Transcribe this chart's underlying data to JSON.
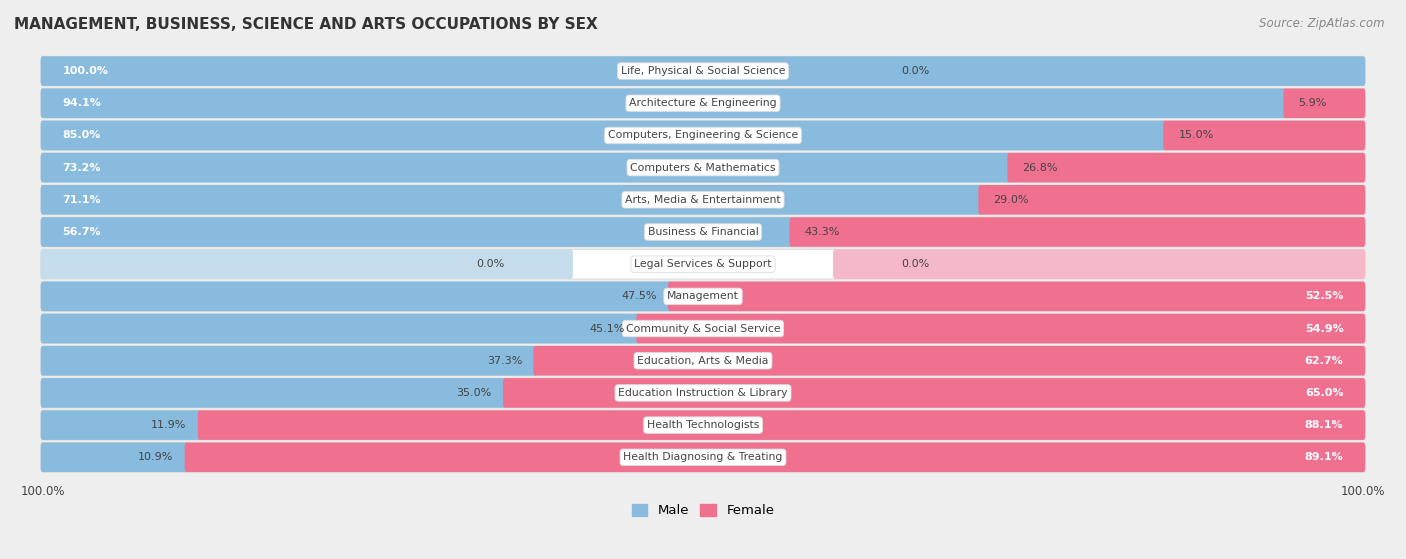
{
  "title": "MANAGEMENT, BUSINESS, SCIENCE AND ARTS OCCUPATIONS BY SEX",
  "source": "Source: ZipAtlas.com",
  "categories": [
    "Life, Physical & Social Science",
    "Architecture & Engineering",
    "Computers, Engineering & Science",
    "Computers & Mathematics",
    "Arts, Media & Entertainment",
    "Business & Financial",
    "Legal Services & Support",
    "Management",
    "Community & Social Service",
    "Education, Arts & Media",
    "Education Instruction & Library",
    "Health Technologists",
    "Health Diagnosing & Treating"
  ],
  "male_pct": [
    100.0,
    94.1,
    85.0,
    73.2,
    71.1,
    56.7,
    0.0,
    47.5,
    45.1,
    37.3,
    35.0,
    11.9,
    10.9
  ],
  "female_pct": [
    0.0,
    5.9,
    15.0,
    26.8,
    29.0,
    43.3,
    0.0,
    52.5,
    54.9,
    62.7,
    65.0,
    88.1,
    89.1
  ],
  "male_color": "#88bbdd",
  "female_color": "#f07090",
  "male_color_light": "#c5dced",
  "female_color_light": "#f5b8c8",
  "bg_color": "#eeeeee",
  "row_bg_color": "#ffffff",
  "row_border_color": "#dddddd",
  "text_dark": "#444444",
  "text_white": "#ffffff"
}
